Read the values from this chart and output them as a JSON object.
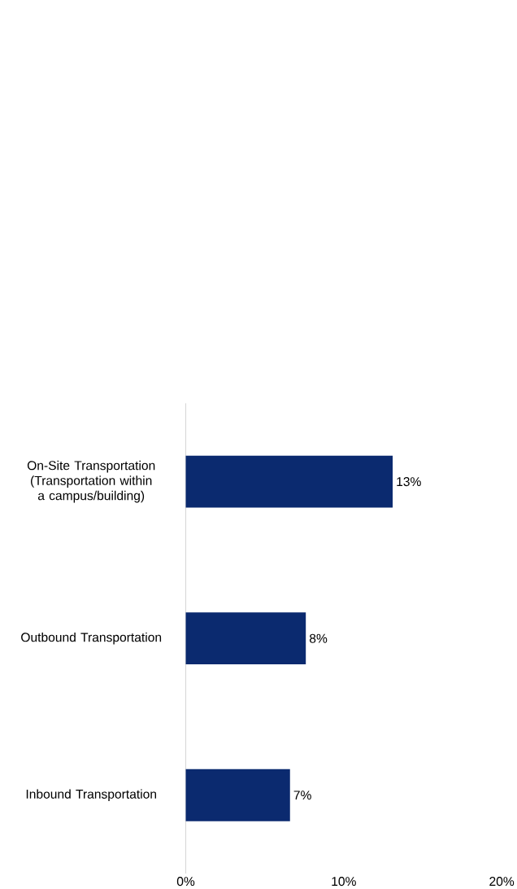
{
  "chart_data": {
    "type": "bar",
    "orientation": "horizontal",
    "categories": [
      "On-Site Transportation (Transportation within a campus/building)",
      "Outbound Transportation",
      "Inbound Transportation"
    ],
    "values": [
      13.1,
      7.6,
      6.6
    ],
    "value_labels": [
      "13%",
      "8%",
      "7%"
    ],
    "color": "#0b2a6f",
    "xlim": [
      0,
      20
    ],
    "xticks": [
      {
        "value": 0,
        "label": "0%"
      },
      {
        "value": 10,
        "label": "10%"
      },
      {
        "value": 20,
        "label": "20%"
      }
    ]
  }
}
